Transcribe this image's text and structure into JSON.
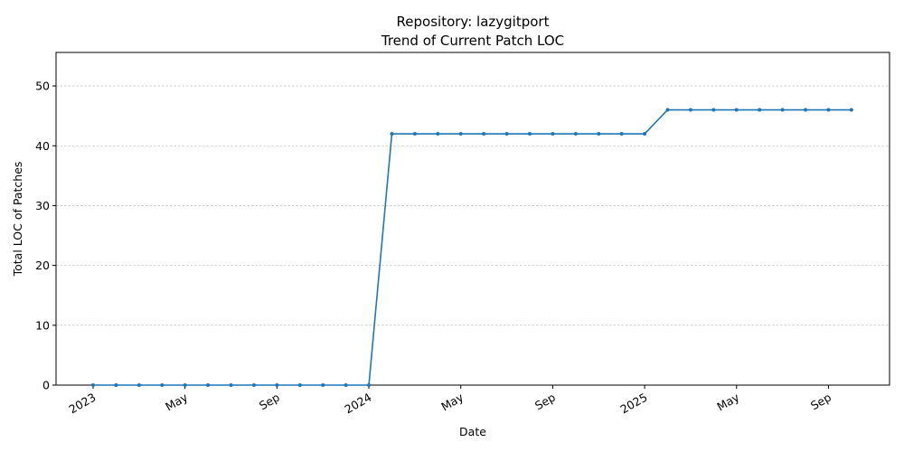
{
  "chart_data": {
    "type": "line",
    "title": "Repository: lazygitport",
    "subtitle": "Trend of Current Patch LOC",
    "xlabel": "Date",
    "ylabel": "Total LOC of Patches",
    "x_tick_labels": [
      "2023",
      "May",
      "Sep",
      "2024",
      "May",
      "Sep",
      "2025",
      "May",
      "Sep"
    ],
    "y_tick_labels": [
      "0",
      "10",
      "20",
      "30",
      "40",
      "50"
    ],
    "ylim": [
      0,
      55.6
    ],
    "grid": "horizontal dashed",
    "line_color": "#1f77b4",
    "x": [
      "2023-01",
      "2023-02",
      "2023-03",
      "2023-04",
      "2023-05",
      "2023-06",
      "2023-07",
      "2023-08",
      "2023-09",
      "2023-10",
      "2023-11",
      "2023-12",
      "2024-01",
      "2024-02",
      "2024-03",
      "2024-04",
      "2024-05",
      "2024-06",
      "2024-07",
      "2024-08",
      "2024-09",
      "2024-10",
      "2024-11",
      "2024-12",
      "2025-01",
      "2025-02",
      "2025-03",
      "2025-04",
      "2025-05",
      "2025-06",
      "2025-07",
      "2025-08",
      "2025-09",
      "2025-10"
    ],
    "series": [
      {
        "values": [
          0,
          0,
          0,
          0,
          0,
          0,
          0,
          0,
          0,
          0,
          0,
          0,
          0,
          42,
          42,
          42,
          42,
          42,
          42,
          42,
          42,
          42,
          42,
          42,
          42,
          46,
          46,
          46,
          46,
          46,
          46,
          46,
          46,
          46
        ]
      }
    ]
  }
}
